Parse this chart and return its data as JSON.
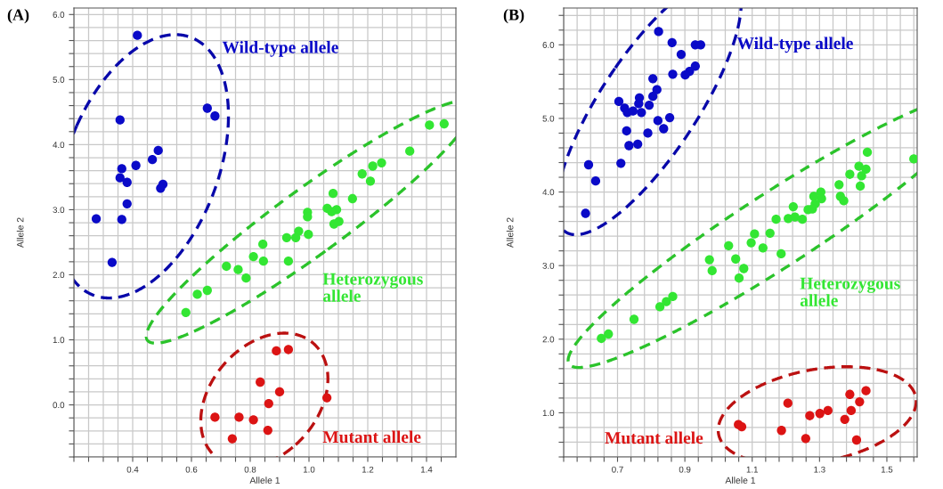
{
  "chart_data": [
    {
      "type": "scatter",
      "title": "(A)",
      "xlabel": "Allele 1",
      "ylabel": "Allele 2",
      "marker": "circle",
      "grid": true,
      "xlim": [
        0.2,
        1.5
      ],
      "ylim": [
        -0.8,
        6.1
      ],
      "xticks": [
        {
          "value": 0.2,
          "label": null
        },
        {
          "value": 0.25,
          "label": null
        },
        {
          "value": 0.3,
          "label": null
        },
        {
          "value": 0.35,
          "label": null
        },
        {
          "value": 0.4,
          "label": "0.4"
        },
        {
          "value": 0.45,
          "label": null
        },
        {
          "value": 0.5,
          "label": null
        },
        {
          "value": 0.55,
          "label": null
        },
        {
          "value": 0.6,
          "label": "0.6"
        },
        {
          "value": 0.65,
          "label": null
        },
        {
          "value": 0.7,
          "label": null
        },
        {
          "value": 0.75,
          "label": null
        },
        {
          "value": 0.8,
          "label": "0.8"
        },
        {
          "value": 0.85,
          "label": null
        },
        {
          "value": 0.9,
          "label": null
        },
        {
          "value": 0.95,
          "label": null
        },
        {
          "value": 1.0,
          "label": "1.0"
        },
        {
          "value": 1.05,
          "label": null
        },
        {
          "value": 1.1,
          "label": null
        },
        {
          "value": 1.15,
          "label": null
        },
        {
          "value": 1.2,
          "label": "1.2"
        },
        {
          "value": 1.25,
          "label": null
        },
        {
          "value": 1.3,
          "label": null
        },
        {
          "value": 1.35,
          "label": null
        },
        {
          "value": 1.4,
          "label": "1.4"
        },
        {
          "value": 1.45,
          "label": null
        }
      ],
      "yticks": [
        {
          "value": -0.8,
          "label": null
        },
        {
          "value": -0.6,
          "label": null
        },
        {
          "value": -0.4,
          "label": null
        },
        {
          "value": -0.2,
          "label": null
        },
        {
          "value": 0,
          "label": "0.0"
        },
        {
          "value": 0.2,
          "label": null
        },
        {
          "value": 0.4,
          "label": null
        },
        {
          "value": 0.6,
          "label": null
        },
        {
          "value": 0.8,
          "label": null
        },
        {
          "value": 1,
          "label": "1.0"
        },
        {
          "value": 1.2,
          "label": null
        },
        {
          "value": 1.4,
          "label": null
        },
        {
          "value": 1.6,
          "label": null
        },
        {
          "value": 1.8,
          "label": null
        },
        {
          "value": 2,
          "label": "2.0"
        },
        {
          "value": 2.2,
          "label": null
        },
        {
          "value": 2.4,
          "label": null
        },
        {
          "value": 2.6,
          "label": null
        },
        {
          "value": 2.8,
          "label": null
        },
        {
          "value": 3,
          "label": "3.0"
        },
        {
          "value": 3.2,
          "label": null
        },
        {
          "value": 3.4,
          "label": null
        },
        {
          "value": 3.6,
          "label": null
        },
        {
          "value": 3.8,
          "label": null
        },
        {
          "value": 4,
          "label": "4.0"
        },
        {
          "value": 4.2,
          "label": null
        },
        {
          "value": 4.4,
          "label": null
        },
        {
          "value": 4.6,
          "label": null
        },
        {
          "value": 4.8,
          "label": null
        },
        {
          "value": 5,
          "label": "5.0"
        },
        {
          "value": 5.2,
          "label": null
        },
        {
          "value": 5.4,
          "label": null
        },
        {
          "value": 5.6,
          "label": null
        },
        {
          "value": 5.8,
          "label": null
        },
        {
          "value": 6,
          "label": "6.0"
        }
      ],
      "series": [
        {
          "color": "#0a0ac8",
          "x": [
            0.416,
            0.357,
            0.363,
            0.411,
            0.487,
            0.467,
            0.357,
            0.381,
            0.503,
            0.495,
            0.381,
            0.276,
            0.363,
            0.654,
            0.68,
            0.33
          ],
          "values": [
            5.68,
            4.38,
            3.63,
            3.68,
            3.91,
            3.77,
            3.49,
            3.42,
            3.39,
            3.33,
            3.09,
            2.86,
            2.85,
            4.56,
            4.44,
            2.19
          ]
        },
        {
          "color": "#33e633",
          "x": [
            1.41,
            1.46,
            1.343,
            1.181,
            1.217,
            1.247,
            1.209,
            1.082,
            1.148,
            1.062,
            1.094,
            1.077,
            0.995,
            0.995,
            1.102,
            1.085,
            0.965,
            0.998,
            0.924,
            0.955,
            0.843,
            0.811,
            0.845,
            0.93,
            0.719,
            0.759,
            0.786,
            0.62,
            0.654,
            0.581
          ],
          "values": [
            4.3,
            4.32,
            3.9,
            3.55,
            3.67,
            3.72,
            3.44,
            3.25,
            3.17,
            3.02,
            3.0,
            2.97,
            2.96,
            2.89,
            2.82,
            2.78,
            2.67,
            2.62,
            2.57,
            2.57,
            2.47,
            2.28,
            2.21,
            2.21,
            2.13,
            2.08,
            1.95,
            1.7,
            1.76,
            1.42
          ]
        },
        {
          "color": "#dc1414",
          "x": [
            0.889,
            0.93,
            0.834,
            0.9,
            0.863,
            1.061,
            0.68,
            0.762,
            0.811,
            0.86,
            0.739
          ],
          "values": [
            0.83,
            0.85,
            0.35,
            0.2,
            0.02,
            0.11,
            -0.19,
            -0.19,
            -0.23,
            -0.39,
            -0.52
          ]
        }
      ],
      "annotations": [
        "Wild-type allele",
        "Heterozygous\nallele",
        "Mutant allele"
      ]
    },
    {
      "type": "scatter",
      "title": "(B)",
      "xlabel": "Allele 1",
      "ylabel": "Allele 2",
      "marker": "circle",
      "grid": true,
      "xlim": [
        0.54,
        1.59
      ],
      "ylim": [
        0.4,
        6.5
      ],
      "xticks": [
        {
          "value": 0.54,
          "label": null
        },
        {
          "value": 0.58,
          "label": null
        },
        {
          "value": 0.62,
          "label": null
        },
        {
          "value": 0.66,
          "label": null
        },
        {
          "value": 0.7,
          "label": "0.7"
        },
        {
          "value": 0.74,
          "label": null
        },
        {
          "value": 0.78,
          "label": null
        },
        {
          "value": 0.82,
          "label": null
        },
        {
          "value": 0.86,
          "label": null
        },
        {
          "value": 0.9,
          "label": "0.9"
        },
        {
          "value": 0.94,
          "label": null
        },
        {
          "value": 0.98,
          "label": null
        },
        {
          "value": 1.02,
          "label": null
        },
        {
          "value": 1.06,
          "label": null
        },
        {
          "value": 1.1,
          "label": "1.1"
        },
        {
          "value": 1.14,
          "label": null
        },
        {
          "value": 1.18,
          "label": null
        },
        {
          "value": 1.22,
          "label": null
        },
        {
          "value": 1.26,
          "label": null
        },
        {
          "value": 1.3,
          "label": "1.3"
        },
        {
          "value": 1.34,
          "label": null
        },
        {
          "value": 1.38,
          "label": null
        },
        {
          "value": 1.42,
          "label": null
        },
        {
          "value": 1.46,
          "label": null
        },
        {
          "value": 1.5,
          "label": "1.5"
        },
        {
          "value": 1.54,
          "label": null
        },
        {
          "value": 1.58,
          "label": null
        }
      ],
      "yticks": [
        {
          "value": 0.4,
          "label": null
        },
        {
          "value": 0.6,
          "label": null
        },
        {
          "value": 0.8,
          "label": null
        },
        {
          "value": 1,
          "label": "1.0"
        },
        {
          "value": 1.2,
          "label": null
        },
        {
          "value": 1.4,
          "label": null
        },
        {
          "value": 1.6,
          "label": null
        },
        {
          "value": 1.8,
          "label": null
        },
        {
          "value": 2,
          "label": "2.0"
        },
        {
          "value": 2.2,
          "label": null
        },
        {
          "value": 2.4,
          "label": null
        },
        {
          "value": 2.6,
          "label": null
        },
        {
          "value": 2.8,
          "label": null
        },
        {
          "value": 3,
          "label": "3.0"
        },
        {
          "value": 3.2,
          "label": null
        },
        {
          "value": 3.4,
          "label": null
        },
        {
          "value": 3.6,
          "label": null
        },
        {
          "value": 3.8,
          "label": null
        },
        {
          "value": 4,
          "label": "4.0"
        },
        {
          "value": 4.2,
          "label": null
        },
        {
          "value": 4.4,
          "label": null
        },
        {
          "value": 4.6,
          "label": null
        },
        {
          "value": 4.8,
          "label": null
        },
        {
          "value": 5,
          "label": "5.0"
        },
        {
          "value": 5.2,
          "label": null
        },
        {
          "value": 5.4,
          "label": null
        },
        {
          "value": 5.6,
          "label": null
        },
        {
          "value": 5.8,
          "label": null
        },
        {
          "value": 6,
          "label": "6.0"
        },
        {
          "value": 6.2,
          "label": null
        },
        {
          "value": 6.4,
          "label": null
        }
      ],
      "series": [
        {
          "color": "#0a0ac8",
          "x": [
            0.822,
            0.862,
            0.889,
            0.931,
            0.947,
            0.931,
            0.914,
            0.901,
            0.864,
            0.805,
            0.817,
            0.805,
            0.794,
            0.765,
            0.763,
            0.704,
            0.721,
            0.729,
            0.746,
            0.771,
            0.855,
            0.82,
            0.837,
            0.727,
            0.79,
            0.76,
            0.734,
            0.71,
            0.614,
            0.635,
            0.605
          ],
          "values": [
            6.18,
            6.03,
            5.87,
            6.0,
            6.0,
            5.71,
            5.64,
            5.59,
            5.6,
            5.54,
            5.39,
            5.3,
            5.18,
            5.28,
            5.2,
            5.23,
            5.14,
            5.08,
            5.1,
            5.08,
            5.01,
            4.97,
            4.86,
            4.83,
            4.8,
            4.65,
            4.63,
            4.39,
            4.37,
            4.15,
            3.71
          ]
        },
        {
          "color": "#33e633",
          "x": [
            1.58,
            1.442,
            1.438,
            1.417,
            1.425,
            1.421,
            1.39,
            1.358,
            1.362,
            1.372,
            1.304,
            1.306,
            1.283,
            1.287,
            1.266,
            1.279,
            1.222,
            1.207,
            1.227,
            1.249,
            1.171,
            1.153,
            1.107,
            1.097,
            1.03,
            1.132,
            1.186,
            0.973,
            0.981,
            1.051,
            1.075,
            1.061,
            0.826,
            0.845,
            0.864,
            0.749,
            0.673,
            0.652
          ],
          "values": [
            4.45,
            4.54,
            4.31,
            4.35,
            4.22,
            4.08,
            4.24,
            4.1,
            3.94,
            3.88,
            4.0,
            3.91,
            3.94,
            3.84,
            3.76,
            3.77,
            3.8,
            3.64,
            3.66,
            3.63,
            3.63,
            3.44,
            3.43,
            3.31,
            3.27,
            3.24,
            3.16,
            3.08,
            2.93,
            3.09,
            2.96,
            2.83,
            2.44,
            2.51,
            2.58,
            2.27,
            2.07,
            2.01
          ]
        },
        {
          "color": "#dc1414",
          "x": [
            1.438,
            1.39,
            1.419,
            1.394,
            1.375,
            1.41,
            1.325,
            1.301,
            1.271,
            1.259,
            1.206,
            1.187,
            1.059,
            1.069
          ],
          "values": [
            1.3,
            1.25,
            1.15,
            1.03,
            0.91,
            0.63,
            1.03,
            0.99,
            0.96,
            0.65,
            1.13,
            0.76,
            0.84,
            0.81
          ]
        }
      ],
      "annotations": [
        "Wild-type allele",
        "Heterozygous\nallele",
        "Mutant allele"
      ]
    }
  ]
}
